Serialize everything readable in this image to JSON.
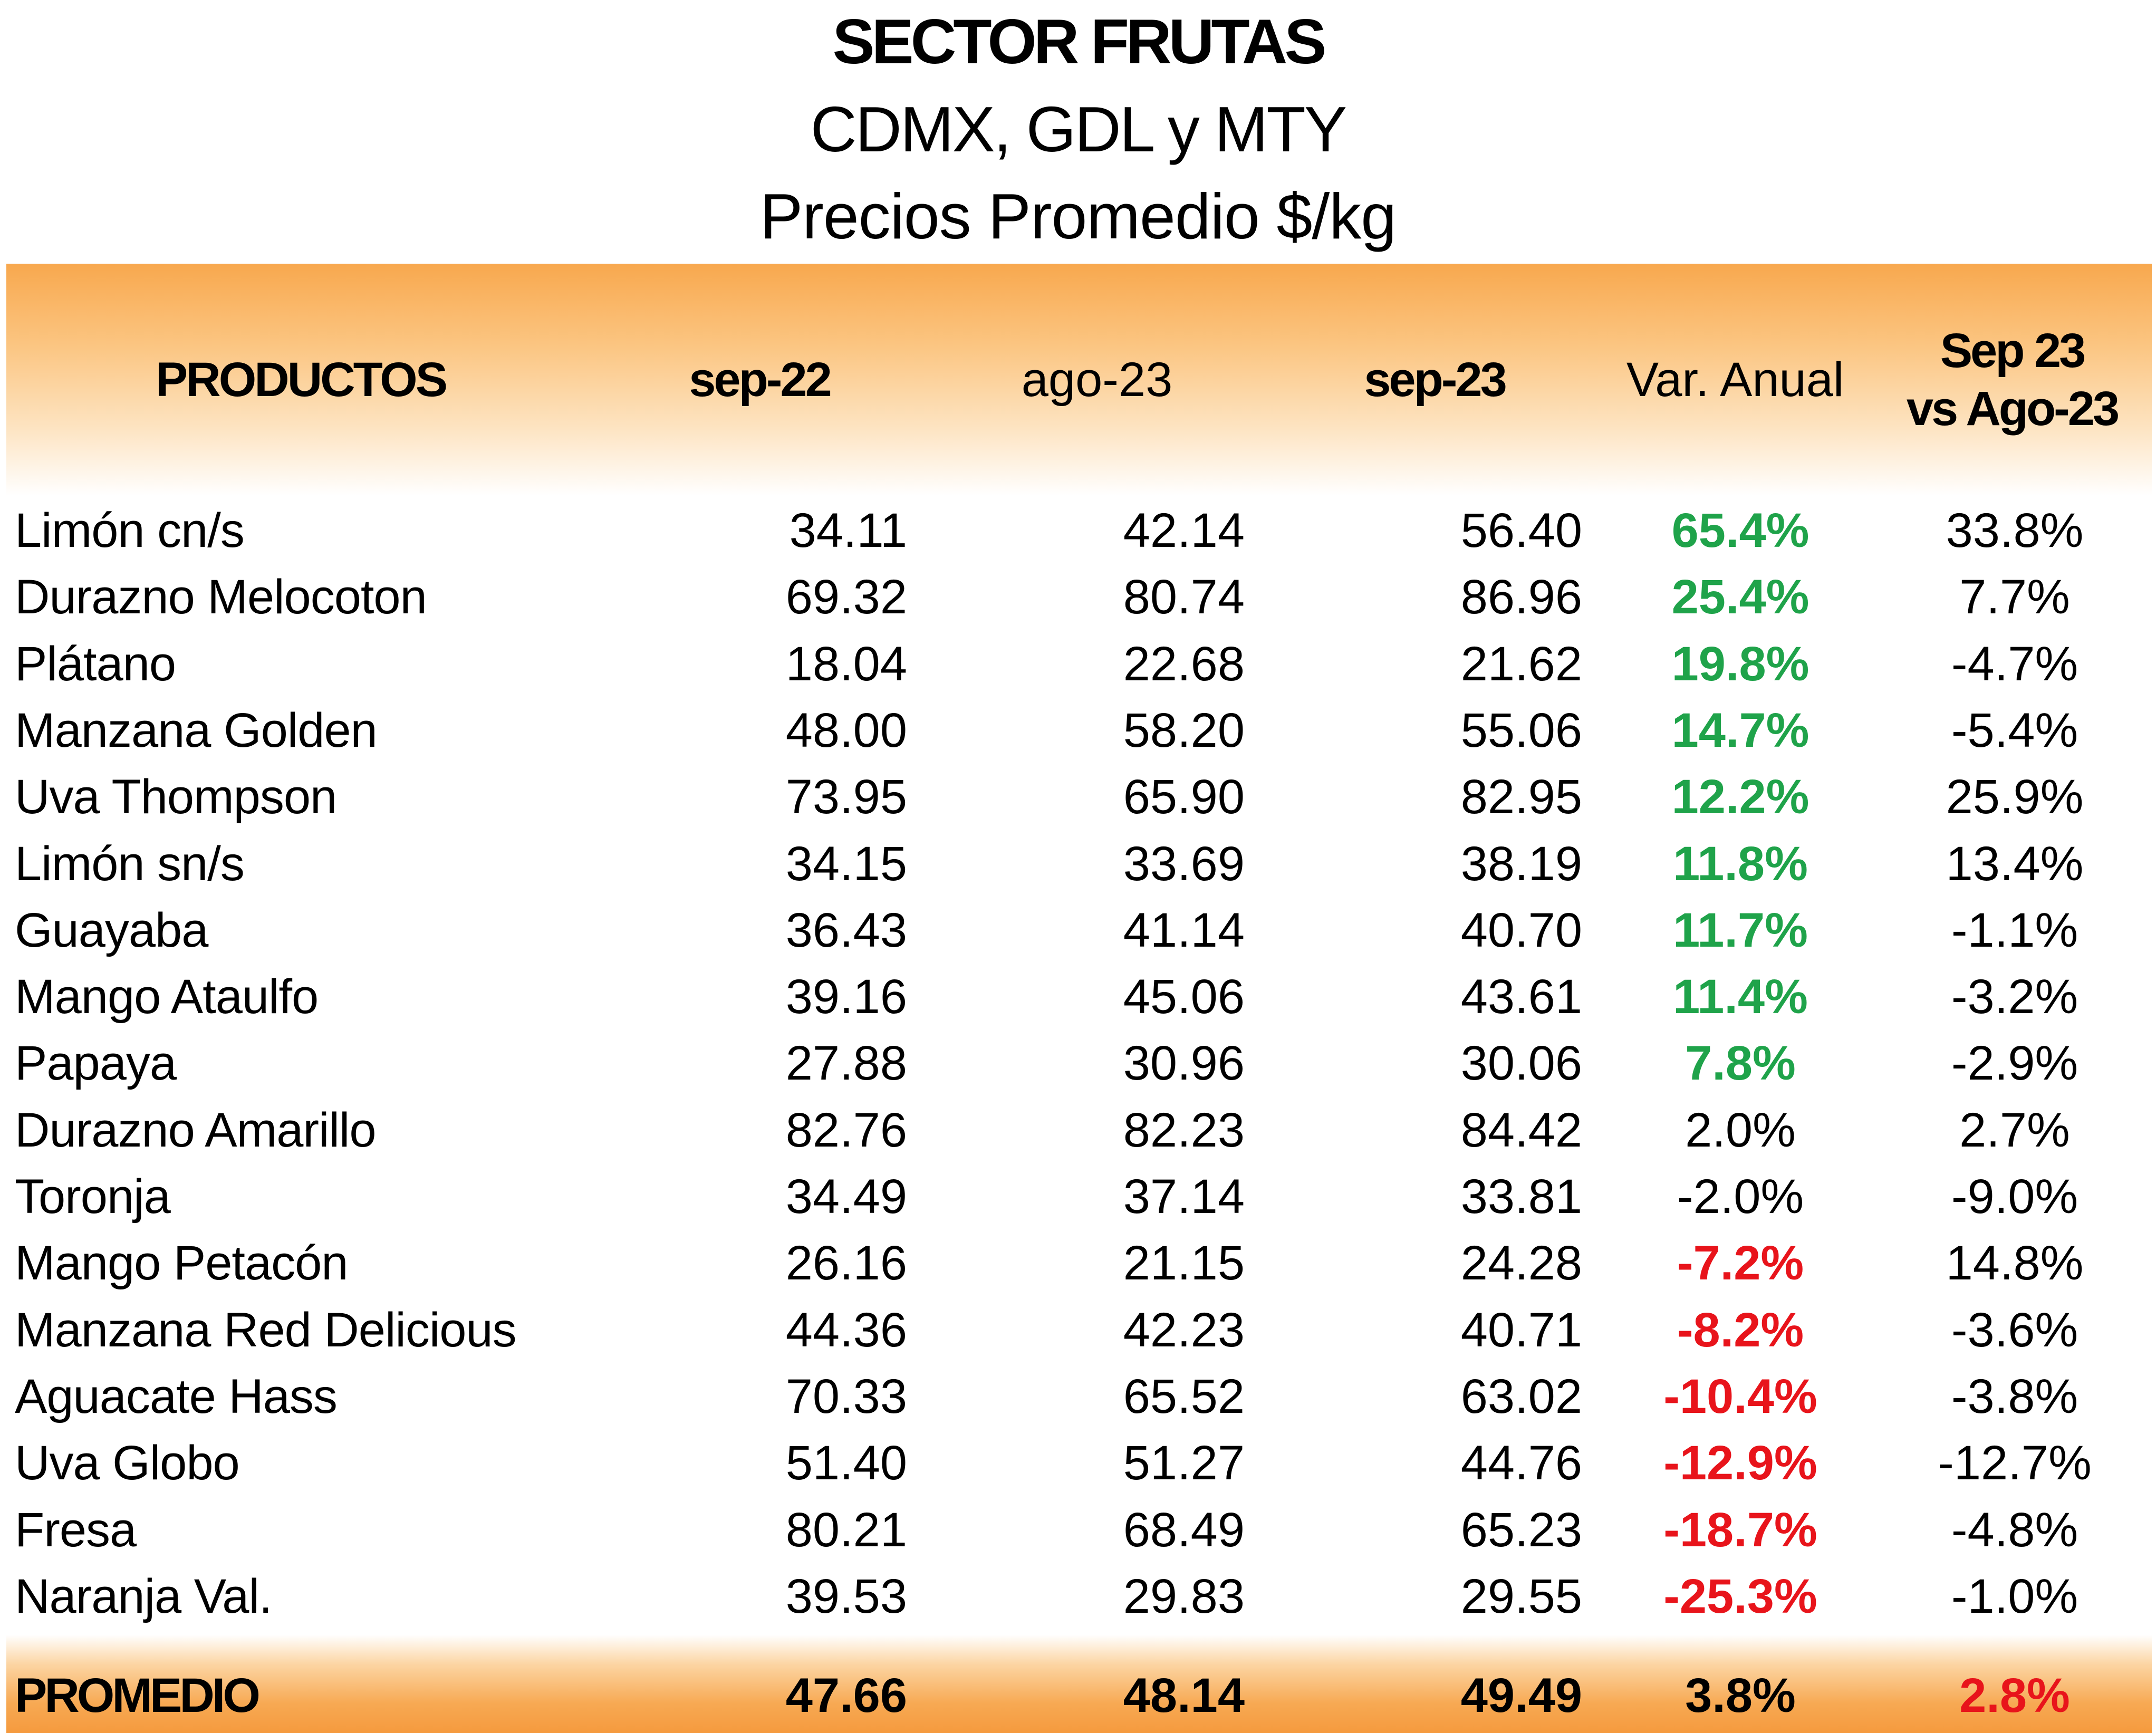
{
  "title": {
    "line1": "SECTOR FRUTAS",
    "line2": "CDMX, GDL y MTY",
    "line3": "Precios Promedio $/kg"
  },
  "columns": {
    "product": "PRODUCTOS",
    "sep22": "sep-22",
    "ago23": "ago-23",
    "sep23": "sep-23",
    "var_anual": "Var. Anual",
    "mom_line1": "Sep 23",
    "mom_line2": "vs Ago-23"
  },
  "colors": {
    "header_orange": "#f8a84e",
    "positive_green": "#1fa34a",
    "negative_red": "#e8141b"
  },
  "rows": [
    {
      "name": "Limón cn/s",
      "sep22": "34.11",
      "ago23": "42.14",
      "sep23": "56.40",
      "var": "65.4%",
      "var_style": "pos",
      "mom": "33.8%"
    },
    {
      "name": "Durazno Melocoton",
      "sep22": "69.32",
      "ago23": "80.74",
      "sep23": "86.96",
      "var": "25.4%",
      "var_style": "pos",
      "mom": "7.7%"
    },
    {
      "name": "Plátano",
      "sep22": "18.04",
      "ago23": "22.68",
      "sep23": "21.62",
      "var": "19.8%",
      "var_style": "pos",
      "mom": "-4.7%"
    },
    {
      "name": "Manzana Golden",
      "sep22": "48.00",
      "ago23": "58.20",
      "sep23": "55.06",
      "var": "14.7%",
      "var_style": "pos",
      "mom": "-5.4%"
    },
    {
      "name": "Uva Thompson",
      "sep22": "73.95",
      "ago23": "65.90",
      "sep23": "82.95",
      "var": "12.2%",
      "var_style": "pos",
      "mom": "25.9%"
    },
    {
      "name": "Limón sn/s",
      "sep22": "34.15",
      "ago23": "33.69",
      "sep23": "38.19",
      "var": "11.8%",
      "var_style": "pos",
      "mom": "13.4%"
    },
    {
      "name": "Guayaba",
      "sep22": "36.43",
      "ago23": "41.14",
      "sep23": "40.70",
      "var": "11.7%",
      "var_style": "pos",
      "mom": "-1.1%"
    },
    {
      "name": "Mango Ataulfo",
      "sep22": "39.16",
      "ago23": "45.06",
      "sep23": "43.61",
      "var": "11.4%",
      "var_style": "pos",
      "mom": "-3.2%"
    },
    {
      "name": "Papaya",
      "sep22": "27.88",
      "ago23": "30.96",
      "sep23": "30.06",
      "var": "7.8%",
      "var_style": "pos",
      "mom": "-2.9%"
    },
    {
      "name": "Durazno Amarillo",
      "sep22": "82.76",
      "ago23": "82.23",
      "sep23": "84.42",
      "var": "2.0%",
      "var_style": "plain",
      "mom": "2.7%"
    },
    {
      "name": "Toronja",
      "sep22": "34.49",
      "ago23": "37.14",
      "sep23": "33.81",
      "var": "-2.0%",
      "var_style": "plain",
      "mom": "-9.0%"
    },
    {
      "name": "Mango Petacón",
      "sep22": "26.16",
      "ago23": "21.15",
      "sep23": "24.28",
      "var": "-7.2%",
      "var_style": "neg",
      "mom": "14.8%"
    },
    {
      "name": "Manzana Red Delicious",
      "sep22": "44.36",
      "ago23": "42.23",
      "sep23": "40.71",
      "var": "-8.2%",
      "var_style": "neg",
      "mom": "-3.6%"
    },
    {
      "name": "Aguacate Hass",
      "sep22": "70.33",
      "ago23": "65.52",
      "sep23": "63.02",
      "var": "-10.4%",
      "var_style": "neg",
      "mom": "-3.8%"
    },
    {
      "name": "Uva Globo",
      "sep22": "51.40",
      "ago23": "51.27",
      "sep23": "44.76",
      "var": "-12.9%",
      "var_style": "neg",
      "mom": "-12.7%"
    },
    {
      "name": "Fresa",
      "sep22": "80.21",
      "ago23": "68.49",
      "sep23": "65.23",
      "var": "-18.7%",
      "var_style": "neg",
      "mom": "-4.8%"
    },
    {
      "name": "Naranja Val.",
      "sep22": "39.53",
      "ago23": "29.83",
      "sep23": "29.55",
      "var": "-25.3%",
      "var_style": "neg",
      "mom": "-1.0%"
    }
  ],
  "average": {
    "label": "PROMEDIO",
    "sep22": "47.66",
    "ago23": "48.14",
    "sep23": "49.49",
    "var": "3.8%",
    "var_style": "plain",
    "mom": "2.8%",
    "mom_style": "neg"
  }
}
